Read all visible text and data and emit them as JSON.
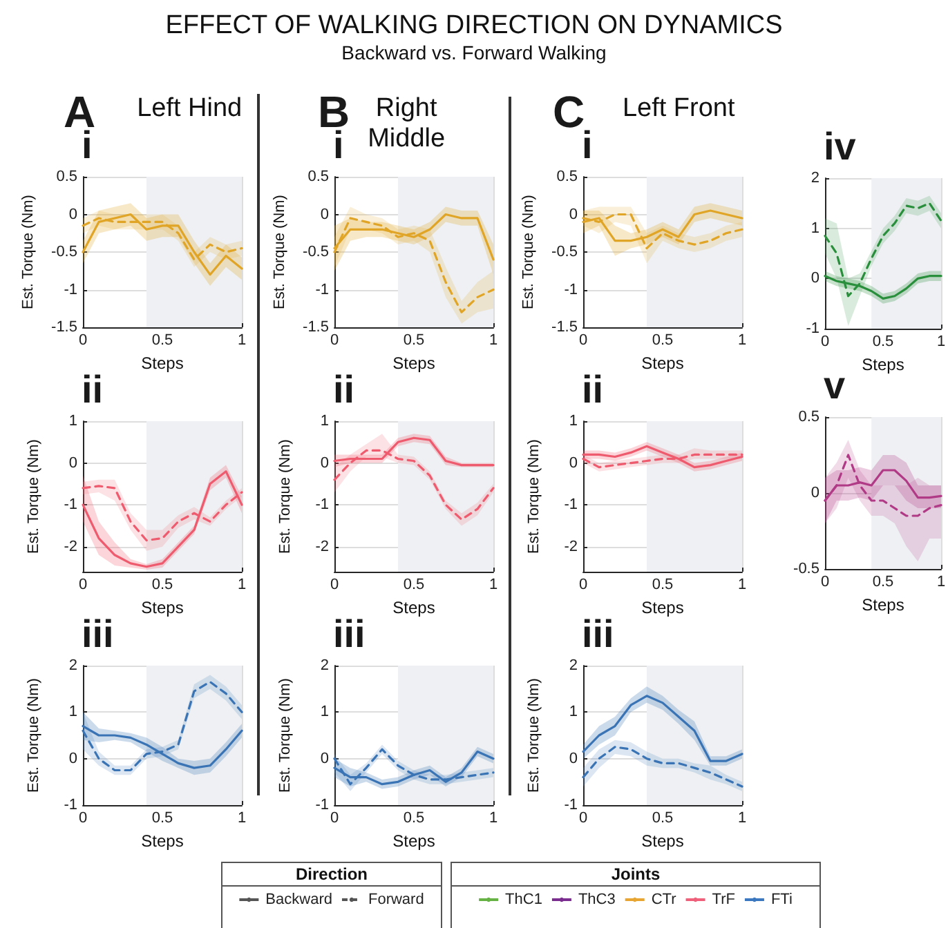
{
  "chart_data": [
    {
      "type": "other",
      "title": "EFFECT OF WALKING DIRECTION ON DYNAMICS",
      "subtitle": "Backward vs. Forward Walking",
      "annotations": [
        "A",
        "Left Hind",
        "B",
        "Right Middle",
        "C",
        "Left Front"
      ]
    },
    {
      "type": "line",
      "title": "i",
      "xlabel": "Steps",
      "ylabel": "Est. Torque (Nm)",
      "x": [
        0,
        0.1,
        0.2,
        0.3,
        0.4,
        0.5,
        0.6,
        0.7,
        0.8,
        0.9,
        1
      ],
      "xlim": [
        0,
        1
      ],
      "xticks": [
        0,
        0.5,
        1
      ],
      "ylim": [
        -1.5,
        0.5
      ],
      "yticks": [
        -1.5,
        -1,
        -0.5,
        0,
        0.5
      ],
      "grid": true,
      "bands": [
        {
          "axis": "x",
          "from": 0.4,
          "to": 1,
          "color": "#eef0f3"
        }
      ],
      "series": [
        {
          "color": "#e0a526",
          "line_style": "solid",
          "values": [
            -0.5,
            -0.1,
            -0.05,
            0,
            -0.2,
            -0.15,
            -0.15,
            -0.5,
            -0.8,
            -0.55,
            -0.72
          ],
          "lower": [
            -0.65,
            -0.25,
            -0.2,
            -0.15,
            -0.35,
            -0.3,
            -0.3,
            -0.65,
            -0.95,
            -0.7,
            -0.87
          ],
          "upper": [
            -0.35,
            0.05,
            0.1,
            0.15,
            -0.05,
            0,
            0,
            -0.35,
            -0.65,
            -0.4,
            -0.57
          ]
        },
        {
          "color": "#e0a526",
          "line_style": "dashed",
          "values": [
            -0.15,
            -0.05,
            -0.1,
            -0.1,
            -0.1,
            -0.1,
            -0.25,
            -0.6,
            -0.4,
            -0.5,
            -0.45
          ],
          "lower": [
            -0.25,
            -0.15,
            -0.2,
            -0.2,
            -0.2,
            -0.2,
            -0.35,
            -0.7,
            -0.5,
            -0.6,
            -0.55
          ],
          "upper": [
            -0.05,
            0.05,
            0,
            0,
            0,
            0,
            -0.15,
            -0.5,
            -0.3,
            -0.4,
            -0.35
          ]
        }
      ]
    },
    {
      "type": "line",
      "title": "ii",
      "xlabel": "Steps",
      "ylabel": "Est. Torque (Nm)",
      "x": [
        0,
        0.1,
        0.2,
        0.3,
        0.4,
        0.5,
        0.6,
        0.7,
        0.8,
        0.9,
        1
      ],
      "xlim": [
        0,
        1
      ],
      "xticks": [
        0,
        0.5,
        1
      ],
      "ylim": [
        -2.6,
        1
      ],
      "yticks": [
        -2,
        -1,
        0,
        1
      ],
      "grid": true,
      "bands": [
        {
          "axis": "x",
          "from": 0.4,
          "to": 1,
          "color": "#eef0f3"
        }
      ],
      "series": [
        {
          "color": "#ef5b6e",
          "line_style": "solid",
          "values": [
            -1,
            -1.8,
            -2.2,
            -2.4,
            -2.48,
            -2.4,
            -2,
            -1.6,
            -0.5,
            -0.2,
            -1
          ],
          "lower": [
            -1.4,
            -2.2,
            -2.45,
            -2.5,
            -2.55,
            -2.5,
            -2.1,
            -1.7,
            -0.65,
            -0.35,
            -1.2
          ],
          "upper": [
            -0.3,
            -1.4,
            -1.9,
            -2.3,
            -2.42,
            -2.3,
            -1.9,
            -1.5,
            -0.35,
            -0.05,
            -0.8
          ]
        },
        {
          "color": "#ef5b6e",
          "line_style": "dashed",
          "values": [
            -0.6,
            -0.55,
            -0.6,
            -1.4,
            -1.85,
            -1.8,
            -1.4,
            -1.2,
            -1.4,
            -1,
            -0.7
          ],
          "lower": [
            -0.75,
            -0.7,
            -0.9,
            -1.6,
            -2.1,
            -2,
            -1.55,
            -1.35,
            -1.5,
            -1.1,
            -0.8
          ],
          "upper": [
            -0.45,
            -0.4,
            -0.4,
            -1.2,
            -1.6,
            -1.6,
            -1.25,
            -1.05,
            -1.3,
            -0.9,
            -0.6
          ]
        }
      ]
    },
    {
      "type": "line",
      "title": "iii",
      "xlabel": "Steps",
      "ylabel": "Est. Torque (Nm)",
      "x": [
        0,
        0.1,
        0.2,
        0.3,
        0.4,
        0.5,
        0.6,
        0.7,
        0.8,
        0.9,
        1
      ],
      "xlim": [
        0,
        1
      ],
      "xticks": [
        0,
        0.5,
        1
      ],
      "ylim": [
        -1,
        2
      ],
      "yticks": [
        -1,
        0,
        1,
        2
      ],
      "grid": true,
      "bands": [
        {
          "axis": "x",
          "from": 0.4,
          "to": 1,
          "color": "#eef0f3"
        }
      ],
      "series": [
        {
          "color": "#3a74b5",
          "line_style": "solid",
          "values": [
            0.7,
            0.5,
            0.5,
            0.45,
            0.3,
            0.1,
            -0.1,
            -0.2,
            -0.15,
            0.2,
            0.6
          ],
          "lower": [
            0.4,
            0.35,
            0.4,
            0.35,
            0.15,
            -0.05,
            -0.2,
            -0.35,
            -0.3,
            0.05,
            0.45
          ],
          "upper": [
            1,
            0.65,
            0.6,
            0.55,
            0.45,
            0.25,
            0,
            -0.05,
            0,
            0.35,
            0.75
          ]
        },
        {
          "color": "#3a74b5",
          "line_style": "dashed",
          "values": [
            0.6,
            0,
            -0.25,
            -0.25,
            0.1,
            0.15,
            0.3,
            1.45,
            1.65,
            1.4,
            1
          ],
          "lower": [
            0.2,
            -0.15,
            -0.35,
            -0.35,
            0,
            0.05,
            0.2,
            1.3,
            1.5,
            1.25,
            0.85
          ],
          "upper": [
            1,
            0.15,
            -0.15,
            -0.15,
            0.2,
            0.25,
            0.4,
            1.6,
            1.8,
            1.55,
            1.15
          ]
        }
      ]
    },
    {
      "type": "line",
      "title": "i",
      "xlabel": "Steps",
      "ylabel": "Est. Torque (Nm)",
      "x": [
        0,
        0.1,
        0.2,
        0.3,
        0.4,
        0.5,
        0.6,
        0.7,
        0.8,
        0.9,
        1
      ],
      "xlim": [
        0,
        1
      ],
      "xticks": [
        0,
        0.5,
        1
      ],
      "ylim": [
        -1.5,
        0.5
      ],
      "yticks": [
        -1.5,
        -1,
        -0.5,
        0,
        0.5
      ],
      "grid": true,
      "bands": [
        {
          "axis": "x",
          "from": 0.4,
          "to": 1,
          "color": "#eef0f3"
        }
      ],
      "series": [
        {
          "color": "#e0a526",
          "line_style": "solid",
          "values": [
            -0.45,
            -0.2,
            -0.2,
            -0.2,
            -0.25,
            -0.3,
            -0.2,
            0,
            -0.05,
            -0.05,
            -0.6
          ],
          "lower": [
            -0.75,
            -0.35,
            -0.3,
            -0.3,
            -0.35,
            -0.4,
            -0.3,
            -0.1,
            -0.15,
            -0.15,
            -0.8
          ],
          "upper": [
            -0.15,
            -0.05,
            -0.1,
            -0.1,
            -0.15,
            -0.2,
            -0.1,
            0.1,
            0.05,
            0.05,
            -0.4
          ]
        },
        {
          "color": "#e0a526",
          "line_style": "dashed",
          "values": [
            -0.5,
            -0.05,
            -0.1,
            -0.15,
            -0.3,
            -0.25,
            -0.35,
            -0.9,
            -1.3,
            -1.1,
            -1
          ],
          "lower": [
            -0.7,
            -0.2,
            -0.2,
            -0.25,
            -0.4,
            -0.35,
            -0.5,
            -1.1,
            -1.45,
            -1.3,
            -1.25
          ],
          "upper": [
            -0.3,
            0.1,
            0,
            -0.05,
            -0.2,
            -0.15,
            -0.2,
            -0.7,
            -1.15,
            -0.9,
            -0.75
          ]
        }
      ]
    },
    {
      "type": "line",
      "title": "ii",
      "xlabel": "Steps",
      "ylabel": "Est. Torque (Nm)",
      "x": [
        0,
        0.1,
        0.2,
        0.3,
        0.4,
        0.5,
        0.6,
        0.7,
        0.8,
        0.9,
        1
      ],
      "xlim": [
        0,
        1
      ],
      "xticks": [
        0,
        0.5,
        1
      ],
      "ylim": [
        -2.6,
        1
      ],
      "yticks": [
        -2,
        -1,
        0,
        1
      ],
      "grid": true,
      "bands": [
        {
          "axis": "x",
          "from": 0.4,
          "to": 1,
          "color": "#eef0f3"
        }
      ],
      "series": [
        {
          "color": "#ef5b6e",
          "line_style": "solid",
          "values": [
            0.05,
            0.1,
            0.1,
            0.1,
            0.5,
            0.6,
            0.55,
            0.05,
            -0.05,
            -0.05,
            -0.05
          ],
          "lower": [
            -0.1,
            0,
            0,
            0,
            0.4,
            0.5,
            0.45,
            -0.05,
            -0.1,
            -0.1,
            -0.1
          ],
          "upper": [
            0.2,
            0.2,
            0.2,
            0.2,
            0.6,
            0.7,
            0.65,
            0.15,
            0,
            0,
            0
          ]
        },
        {
          "color": "#ef5b6e",
          "line_style": "dashed",
          "values": [
            -0.4,
            0,
            0.3,
            0.3,
            0.1,
            0.05,
            -0.3,
            -1,
            -1.35,
            -1.1,
            -0.6
          ],
          "lower": [
            -0.7,
            -0.2,
            0.15,
            0.15,
            0,
            -0.05,
            -0.4,
            -1.1,
            -1.5,
            -1.25,
            -0.7
          ],
          "upper": [
            -0.1,
            0.2,
            0.45,
            0.7,
            0.2,
            0.15,
            -0.2,
            -0.9,
            -1.2,
            -0.95,
            -0.5
          ]
        }
      ]
    },
    {
      "type": "line",
      "title": "iii",
      "xlabel": "Steps",
      "ylabel": "Est. Torque (Nm)",
      "x": [
        0,
        0.1,
        0.2,
        0.3,
        0.4,
        0.5,
        0.6,
        0.7,
        0.8,
        0.9,
        1
      ],
      "xlim": [
        0,
        1
      ],
      "xticks": [
        0,
        0.5,
        1
      ],
      "ylim": [
        -1,
        2
      ],
      "yticks": [
        -1,
        0,
        1,
        2
      ],
      "grid": true,
      "bands": [
        {
          "axis": "x",
          "from": 0.4,
          "to": 1,
          "color": "#eef0f3"
        }
      ],
      "series": [
        {
          "color": "#3a74b5",
          "line_style": "solid",
          "values": [
            -0.2,
            -0.4,
            -0.4,
            -0.55,
            -0.5,
            -0.35,
            -0.25,
            -0.5,
            -0.3,
            0.15,
            0
          ],
          "lower": [
            -0.4,
            -0.6,
            -0.5,
            -0.65,
            -0.6,
            -0.45,
            -0.35,
            -0.6,
            -0.4,
            0.05,
            -0.1
          ],
          "upper": [
            0,
            -0.2,
            -0.3,
            -0.45,
            -0.4,
            -0.25,
            -0.15,
            -0.4,
            -0.2,
            0.25,
            0.1
          ]
        },
        {
          "color": "#3a74b5",
          "line_style": "dashed",
          "values": [
            0,
            -0.55,
            -0.2,
            0.2,
            -0.15,
            -0.35,
            -0.45,
            -0.45,
            -0.4,
            -0.35,
            -0.3
          ],
          "lower": [
            -0.3,
            -0.7,
            -0.3,
            0.1,
            -0.25,
            -0.45,
            -0.55,
            -0.55,
            -0.5,
            -0.45,
            -0.4
          ],
          "upper": [
            0.1,
            -0.35,
            -0.1,
            0.3,
            -0.05,
            -0.25,
            -0.35,
            -0.35,
            -0.3,
            -0.25,
            -0.2
          ]
        }
      ]
    },
    {
      "type": "line",
      "title": "i",
      "xlabel": "Steps",
      "ylabel": "Est. Torque (Nm)",
      "x": [
        0,
        0.1,
        0.2,
        0.3,
        0.4,
        0.5,
        0.6,
        0.7,
        0.8,
        0.9,
        1
      ],
      "xlim": [
        0,
        1
      ],
      "xticks": [
        0,
        0.5,
        1
      ],
      "ylim": [
        -1.5,
        0.5
      ],
      "yticks": [
        -1.5,
        -1,
        -0.5,
        0,
        0.5
      ],
      "grid": true,
      "bands": [
        {
          "axis": "x",
          "from": 0.4,
          "to": 1,
          "color": "#eef0f3"
        }
      ],
      "series": [
        {
          "color": "#e0a526",
          "line_style": "solid",
          "values": [
            -0.1,
            -0.05,
            -0.35,
            -0.35,
            -0.3,
            -0.2,
            -0.3,
            0,
            0.05,
            0,
            -0.05
          ],
          "lower": [
            -0.25,
            -0.15,
            -0.55,
            -0.45,
            -0.4,
            -0.3,
            -0.4,
            -0.1,
            -0.05,
            -0.1,
            -0.15
          ],
          "upper": [
            0.05,
            0.05,
            -0.15,
            -0.25,
            -0.2,
            -0.1,
            -0.2,
            0.1,
            0.15,
            0.1,
            0.05
          ]
        },
        {
          "color": "#e0a526",
          "line_style": "dashed",
          "values": [
            -0.05,
            -0.1,
            0,
            0,
            -0.45,
            -0.25,
            -0.35,
            -0.4,
            -0.35,
            -0.25,
            -0.2
          ],
          "lower": [
            -0.15,
            -0.25,
            -0.1,
            -0.15,
            -0.65,
            -0.35,
            -0.45,
            -0.5,
            -0.45,
            -0.35,
            -0.3
          ],
          "upper": [
            0.05,
            0.1,
            0.1,
            0.1,
            -0.25,
            -0.15,
            -0.25,
            -0.3,
            -0.25,
            -0.15,
            -0.1
          ]
        }
      ]
    },
    {
      "type": "line",
      "title": "ii",
      "xlabel": "Steps",
      "ylabel": "Est. Torque (Nm)",
      "x": [
        0,
        0.1,
        0.2,
        0.3,
        0.4,
        0.5,
        0.6,
        0.7,
        0.8,
        0.9,
        1
      ],
      "xlim": [
        0,
        1
      ],
      "xticks": [
        0,
        0.5,
        1
      ],
      "ylim": [
        -2.6,
        1
      ],
      "yticks": [
        -2,
        -1,
        0,
        1
      ],
      "grid": true,
      "bands": [
        {
          "axis": "x",
          "from": 0.4,
          "to": 1,
          "color": "#eef0f3"
        }
      ],
      "series": [
        {
          "color": "#ef5b6e",
          "line_style": "solid",
          "values": [
            0.2,
            0.2,
            0.15,
            0.25,
            0.4,
            0.25,
            0.1,
            -0.1,
            -0.05,
            0.05,
            0.15
          ],
          "lower": [
            0.1,
            0.1,
            0.05,
            0.15,
            0.3,
            0.15,
            0,
            -0.2,
            -0.15,
            -0.05,
            0.05
          ],
          "upper": [
            0.3,
            0.3,
            0.25,
            0.35,
            0.5,
            0.35,
            0.2,
            0,
            0.05,
            0.15,
            0.25
          ]
        },
        {
          "color": "#ef5b6e",
          "line_style": "dashed",
          "values": [
            0.1,
            -0.1,
            -0.05,
            0,
            0.05,
            0.1,
            0.1,
            0.2,
            0.2,
            0.2,
            0.2
          ],
          "lower": [
            0,
            -0.2,
            -0.15,
            -0.1,
            -0.05,
            0,
            0,
            0.1,
            0.1,
            0.1,
            0.1
          ],
          "upper": [
            0.2,
            0,
            0.05,
            0.1,
            0.15,
            0.2,
            0.2,
            0.35,
            0.3,
            0.3,
            0.3
          ]
        }
      ]
    },
    {
      "type": "line",
      "title": "iii",
      "xlabel": "Steps",
      "ylabel": "Est. Torque (Nm)",
      "x": [
        0,
        0.1,
        0.2,
        0.3,
        0.4,
        0.5,
        0.6,
        0.7,
        0.8,
        0.9,
        1
      ],
      "xlim": [
        0,
        1
      ],
      "xticks": [
        0,
        0.5,
        1
      ],
      "ylim": [
        -1,
        2
      ],
      "yticks": [
        -1,
        0,
        1,
        2
      ],
      "grid": true,
      "bands": [
        {
          "axis": "x",
          "from": 0.4,
          "to": 1,
          "color": "#eef0f3"
        }
      ],
      "series": [
        {
          "color": "#3a74b5",
          "line_style": "solid",
          "values": [
            0.15,
            0.5,
            0.7,
            1.15,
            1.35,
            1.2,
            0.9,
            0.6,
            -0.05,
            -0.05,
            0.1
          ],
          "lower": [
            0,
            0.3,
            0.5,
            1,
            1.2,
            1.05,
            0.75,
            0.4,
            -0.15,
            -0.15,
            0
          ],
          "upper": [
            0.3,
            0.7,
            0.9,
            1.3,
            1.55,
            1.35,
            1.05,
            0.8,
            0.05,
            0.05,
            0.2
          ]
        },
        {
          "color": "#3a74b5",
          "line_style": "dashed",
          "values": [
            -0.4,
            0,
            0.25,
            0.2,
            0,
            -0.1,
            -0.1,
            -0.2,
            -0.3,
            -0.45,
            -0.6
          ],
          "lower": [
            -0.6,
            -0.2,
            0.1,
            0.05,
            -0.15,
            -0.2,
            -0.2,
            -0.3,
            -0.45,
            -0.55,
            -0.7
          ],
          "upper": [
            -0.2,
            0.2,
            0.4,
            0.35,
            0.15,
            0,
            0,
            -0.1,
            -0.15,
            -0.35,
            -0.5
          ]
        }
      ]
    },
    {
      "type": "line",
      "title": "iv",
      "xlabel": "Steps",
      "x": [
        0,
        0.1,
        0.2,
        0.3,
        0.4,
        0.5,
        0.6,
        0.7,
        0.8,
        0.9,
        1
      ],
      "xlim": [
        0,
        1
      ],
      "xticks": [
        0,
        0.5,
        1
      ],
      "ylim": [
        -1,
        2
      ],
      "yticks": [
        -1,
        0,
        1,
        2
      ],
      "grid": true,
      "bands": [
        {
          "axis": "x",
          "from": 0.4,
          "to": 1,
          "color": "#eef0f3"
        }
      ],
      "series": [
        {
          "color": "#2a8f3c",
          "line_style": "solid",
          "values": [
            0.05,
            -0.05,
            -0.1,
            -0.15,
            -0.25,
            -0.4,
            -0.35,
            -0.2,
            0,
            0.05,
            0.05
          ],
          "lower": [
            -0.05,
            -0.15,
            -0.2,
            -0.25,
            -0.35,
            -0.5,
            -0.45,
            -0.3,
            -0.1,
            -0.05,
            -0.05
          ],
          "upper": [
            0.15,
            0.05,
            0,
            -0.05,
            -0.15,
            -0.3,
            -0.25,
            -0.1,
            0.1,
            0.15,
            0.15
          ]
        },
        {
          "color": "#2a8f3c",
          "line_style": "dashed",
          "values": [
            0.85,
            0.5,
            -0.35,
            -0.1,
            0.4,
            0.85,
            1.1,
            1.45,
            1.4,
            1.5,
            1.15
          ],
          "lower": [
            0.5,
            0,
            -0.95,
            -0.35,
            0.25,
            0.7,
            0.95,
            1.3,
            1.25,
            1.35,
            1
          ],
          "upper": [
            1.2,
            1.1,
            0,
            0.1,
            0.55,
            1,
            1.25,
            1.6,
            1.55,
            1.65,
            1.3
          ]
        }
      ]
    },
    {
      "type": "line",
      "title": "v",
      "xlabel": "Steps",
      "x": [
        0,
        0.1,
        0.2,
        0.3,
        0.4,
        0.5,
        0.6,
        0.7,
        0.8,
        0.9,
        1
      ],
      "xlim": [
        0,
        1
      ],
      "xticks": [
        0,
        0.5,
        1
      ],
      "ylim": [
        -0.5,
        0.5
      ],
      "yticks": [
        -0.5,
        0,
        0.5
      ],
      "grid": true,
      "bands": [
        {
          "axis": "x",
          "from": 0.4,
          "to": 1,
          "color": "#eef0f3"
        }
      ],
      "series": [
        {
          "color": "#b03a86",
          "line_style": "solid",
          "values": [
            -0.05,
            0.05,
            0.05,
            0.07,
            0.05,
            0.15,
            0.15,
            0.08,
            -0.03,
            -0.03,
            -0.02
          ],
          "lower": [
            -0.2,
            -0.05,
            -0.05,
            -0.03,
            -0.05,
            0.05,
            0.05,
            -0.05,
            -0.1,
            -0.1,
            -0.1
          ],
          "upper": [
            0.1,
            0.15,
            0.15,
            0.17,
            0.15,
            0.25,
            0.25,
            0.2,
            0.05,
            0.05,
            0.05
          ]
        },
        {
          "color": "#b03a86",
          "line_style": "dashed",
          "values": [
            -0.05,
            0.05,
            0.25,
            0.05,
            -0.05,
            -0.05,
            -0.1,
            -0.15,
            -0.15,
            -0.1,
            -0.08
          ],
          "lower": [
            -0.2,
            -0.1,
            0.1,
            -0.05,
            -0.15,
            -0.15,
            -0.2,
            -0.35,
            -0.45,
            -0.3,
            -0.3
          ],
          "upper": [
            0.1,
            0.2,
            0.35,
            0.15,
            0.05,
            0.05,
            0.05,
            0.05,
            0.1,
            0.05,
            0.05
          ]
        }
      ]
    },
    {
      "type": "other",
      "title": "Direction",
      "series": [
        {
          "name": "Backward",
          "color": "#555555",
          "line_style": "solid"
        },
        {
          "name": "Forward",
          "color": "#555555",
          "line_style": "dashed"
        }
      ]
    },
    {
      "type": "other",
      "title": "Joints",
      "series": [
        {
          "name": "ThC1",
          "color": "#66b245"
        },
        {
          "name": "ThC3",
          "color": "#7b2e90"
        },
        {
          "name": "CTr",
          "color": "#e8a531"
        },
        {
          "name": "TrF",
          "color": "#f0607a"
        },
        {
          "name": "FTi",
          "color": "#3c78c0"
        }
      ]
    }
  ]
}
